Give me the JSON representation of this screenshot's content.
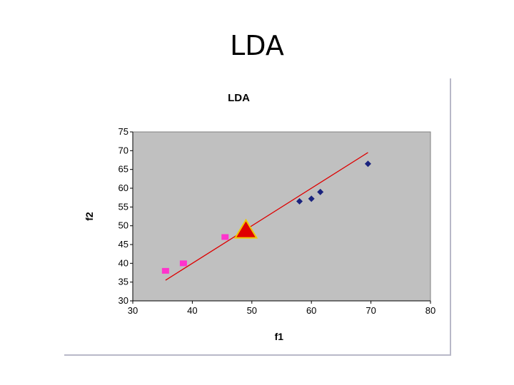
{
  "slide": {
    "title": "LDA"
  },
  "chart_data": {
    "type": "scatter",
    "title": "LDA",
    "xlabel": "f1",
    "ylabel": "f2",
    "xlim": [
      30,
      80
    ],
    "ylim": [
      30,
      75
    ],
    "xticks": [
      30,
      40,
      50,
      60,
      70,
      80
    ],
    "yticks": [
      30,
      35,
      40,
      45,
      50,
      55,
      60,
      65,
      70,
      75
    ],
    "grid": false,
    "plot_background": "#c0c0c0",
    "series": [
      {
        "marker": "diamond",
        "color": "#1a237e",
        "points": [
          [
            58,
            56.5
          ],
          [
            60,
            57.2
          ],
          [
            61.5,
            59
          ],
          [
            69.5,
            66.5
          ]
        ]
      },
      {
        "marker": "square",
        "color": "#ff33cc",
        "points": [
          [
            35.5,
            38
          ],
          [
            38.5,
            40
          ],
          [
            45.5,
            47
          ]
        ]
      },
      {
        "marker": "triangle",
        "color": "#e00000",
        "edge_color": "#f0c800",
        "points": [
          [
            49,
            48.5
          ]
        ]
      }
    ],
    "line": {
      "color": "#dd0000",
      "points": [
        [
          35.5,
          35.5
        ],
        [
          69.5,
          69.5
        ]
      ]
    }
  }
}
